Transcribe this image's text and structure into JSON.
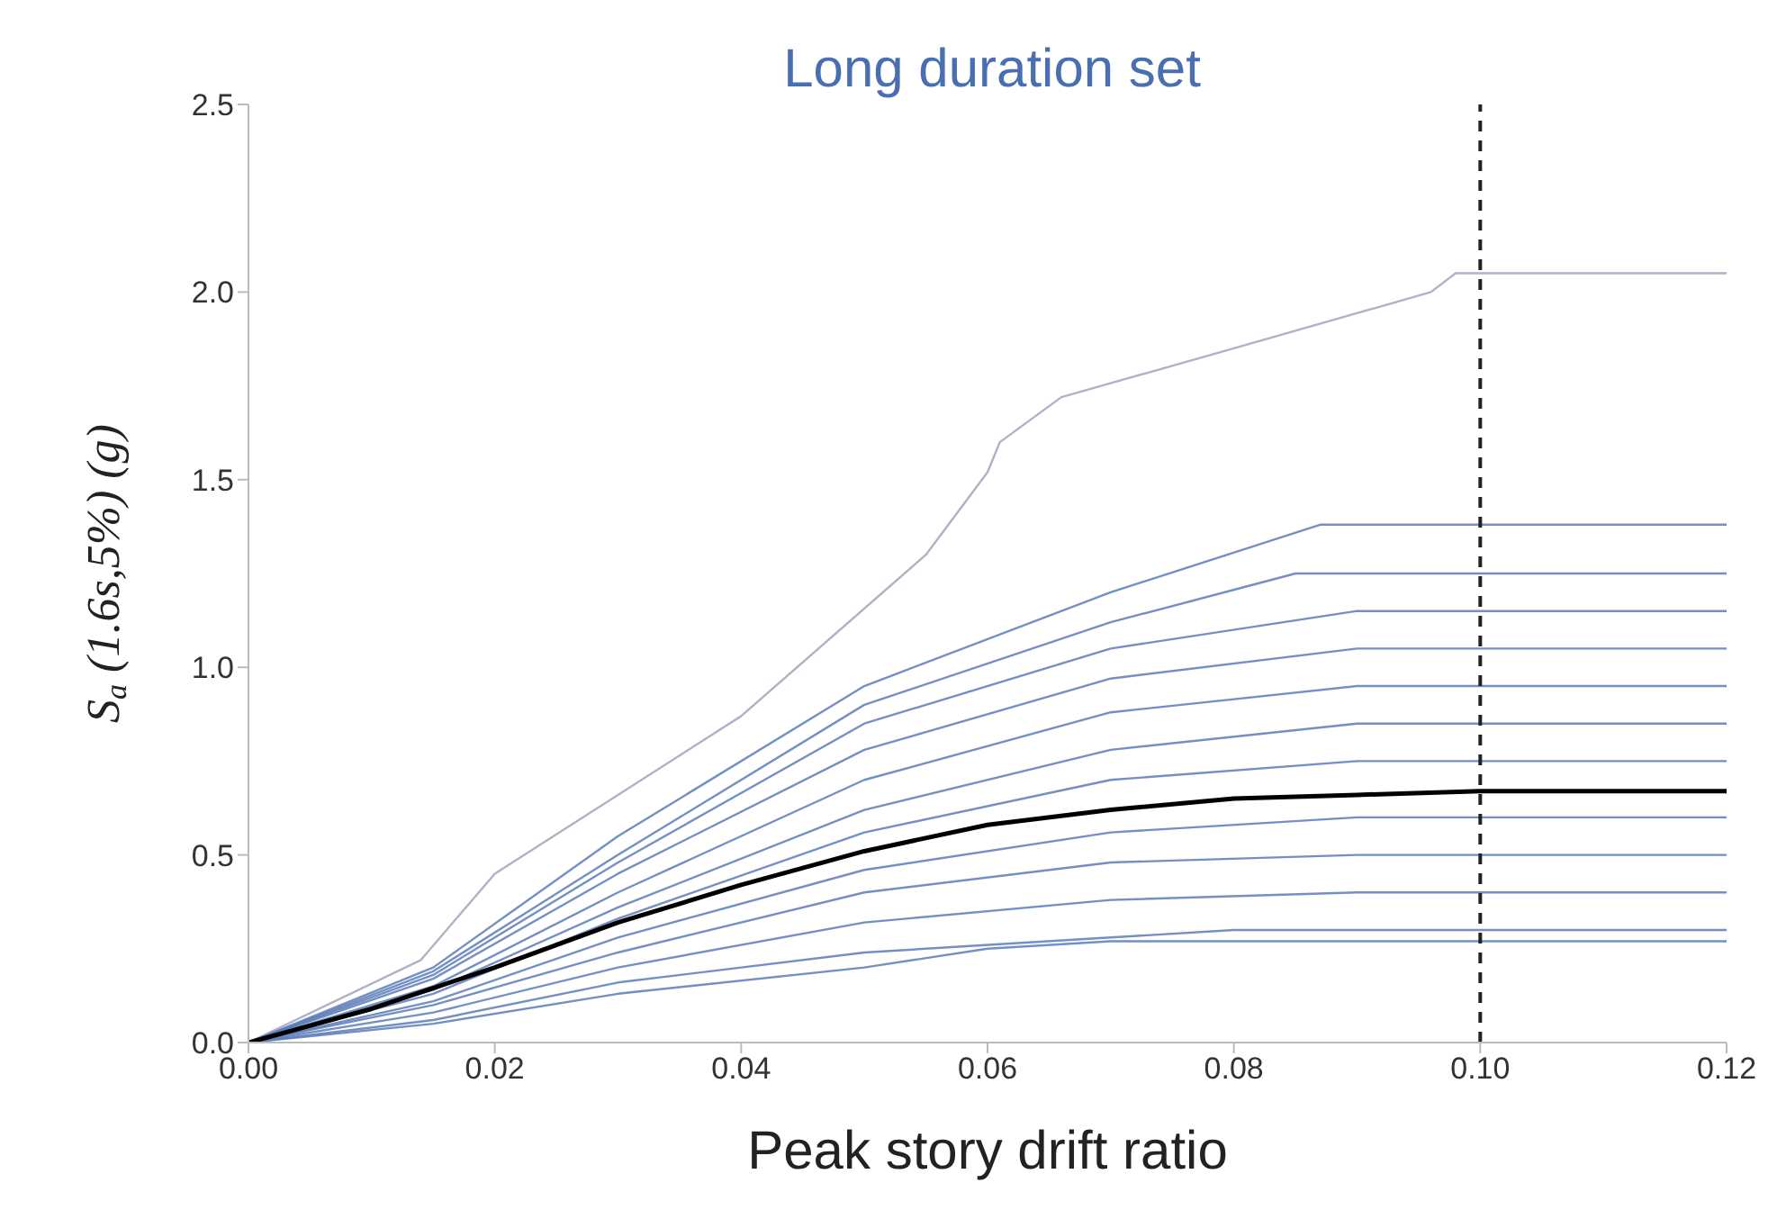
{
  "chart_data": {
    "type": "line",
    "title": "Long duration set",
    "xlabel": "Peak story drift ratio",
    "ylabel": "S$_{a}$ (1.6s,5%) (g)",
    "xlim": [
      0,
      0.12
    ],
    "xticks": [
      {
        "value": 0,
        "label": "0.00"
      },
      {
        "value": 0.02,
        "label": "0.02"
      },
      {
        "value": 0.04,
        "label": "0.04"
      },
      {
        "value": 0.06,
        "label": "0.06"
      },
      {
        "value": 0.08,
        "label": "0.08"
      },
      {
        "value": 0.1,
        "label": "0.10"
      },
      {
        "value": 0.12,
        "label": "0.12"
      }
    ],
    "ylim": [
      0,
      2.5
    ],
    "yticks": [
      {
        "value": 0,
        "label": "0.0"
      },
      {
        "value": 0.5,
        "label": "0.5"
      },
      {
        "value": 1,
        "label": "1.0"
      },
      {
        "value": 1.5,
        "label": "1.5"
      },
      {
        "value": 2,
        "label": "2.0"
      },
      {
        "value": 2.5,
        "label": "2.5"
      }
    ],
    "marker": "none",
    "line_style": "solid",
    "ref_lines": [
      {
        "axis": "x",
        "value": 0.1,
        "color": "#222222",
        "line_style": "dashed"
      }
    ],
    "series": [
      {
        "color": "#a0a4bc",
        "x": [
          0,
          0.014,
          0.02,
          0.04,
          0.055,
          0.06,
          0.061,
          0.066,
          0.08,
          0.096,
          0.098,
          0.12
        ],
        "values": [
          0,
          0.22,
          0.45,
          0.87,
          1.3,
          1.52,
          1.6,
          1.72,
          1.85,
          2.0,
          2.05,
          2.05
        ]
      },
      {
        "color": "#5a7bb8",
        "x": [
          0,
          0.015,
          0.03,
          0.05,
          0.07,
          0.087,
          0.12
        ],
        "values": [
          0,
          0.2,
          0.55,
          0.95,
          1.2,
          1.38,
          1.38
        ]
      },
      {
        "color": "#5a7bb8",
        "x": [
          0,
          0.015,
          0.03,
          0.05,
          0.07,
          0.085,
          0.12
        ],
        "values": [
          0,
          0.19,
          0.5,
          0.9,
          1.12,
          1.25,
          1.25
        ]
      },
      {
        "color": "#5a7bb8",
        "x": [
          0,
          0.015,
          0.03,
          0.05,
          0.07,
          0.09,
          0.12
        ],
        "values": [
          0,
          0.18,
          0.48,
          0.85,
          1.05,
          1.15,
          1.15
        ]
      },
      {
        "color": "#5a7bb8",
        "x": [
          0,
          0.015,
          0.03,
          0.05,
          0.07,
          0.09,
          0.12
        ],
        "values": [
          0,
          0.17,
          0.45,
          0.78,
          0.97,
          1.05,
          1.05
        ]
      },
      {
        "color": "#5a7bb8",
        "x": [
          0,
          0.015,
          0.03,
          0.05,
          0.07,
          0.09,
          0.12
        ],
        "values": [
          0,
          0.15,
          0.4,
          0.7,
          0.88,
          0.95,
          0.95
        ]
      },
      {
        "color": "#5a7bb8",
        "x": [
          0,
          0.015,
          0.03,
          0.05,
          0.07,
          0.09,
          0.12
        ],
        "values": [
          0,
          0.14,
          0.36,
          0.62,
          0.78,
          0.85,
          0.85
        ]
      },
      {
        "color": "#5a7bb8",
        "x": [
          0,
          0.015,
          0.03,
          0.05,
          0.07,
          0.09,
          0.12
        ],
        "values": [
          0,
          0.13,
          0.33,
          0.56,
          0.7,
          0.75,
          0.75
        ]
      },
      {
        "color": "#5a7bb8",
        "x": [
          0,
          0.015,
          0.03,
          0.05,
          0.07,
          0.09,
          0.12
        ],
        "values": [
          0,
          0.11,
          0.28,
          0.46,
          0.56,
          0.6,
          0.6
        ]
      },
      {
        "color": "#5a7bb8",
        "x": [
          0,
          0.015,
          0.03,
          0.05,
          0.07,
          0.09,
          0.12
        ],
        "values": [
          0,
          0.1,
          0.24,
          0.4,
          0.48,
          0.5,
          0.5
        ]
      },
      {
        "color": "#5a7bb8",
        "x": [
          0,
          0.015,
          0.03,
          0.05,
          0.07,
          0.09,
          0.12
        ],
        "values": [
          0,
          0.08,
          0.2,
          0.32,
          0.38,
          0.4,
          0.4
        ]
      },
      {
        "color": "#5a7bb8",
        "x": [
          0,
          0.015,
          0.03,
          0.05,
          0.07,
          0.08,
          0.12
        ],
        "values": [
          0,
          0.06,
          0.16,
          0.24,
          0.28,
          0.3,
          0.3
        ]
      },
      {
        "color": "#5a7bb8",
        "x": [
          0,
          0.015,
          0.03,
          0.05,
          0.06,
          0.07,
          0.12
        ],
        "values": [
          0,
          0.05,
          0.13,
          0.2,
          0.25,
          0.27,
          0.27
        ]
      },
      {
        "color": "#000000",
        "x": [
          0,
          0.01,
          0.02,
          0.03,
          0.04,
          0.05,
          0.06,
          0.07,
          0.08,
          0.09,
          0.1,
          0.12
        ],
        "values": [
          0,
          0.09,
          0.2,
          0.32,
          0.42,
          0.51,
          0.58,
          0.62,
          0.65,
          0.66,
          0.67,
          0.67
        ]
      }
    ]
  }
}
